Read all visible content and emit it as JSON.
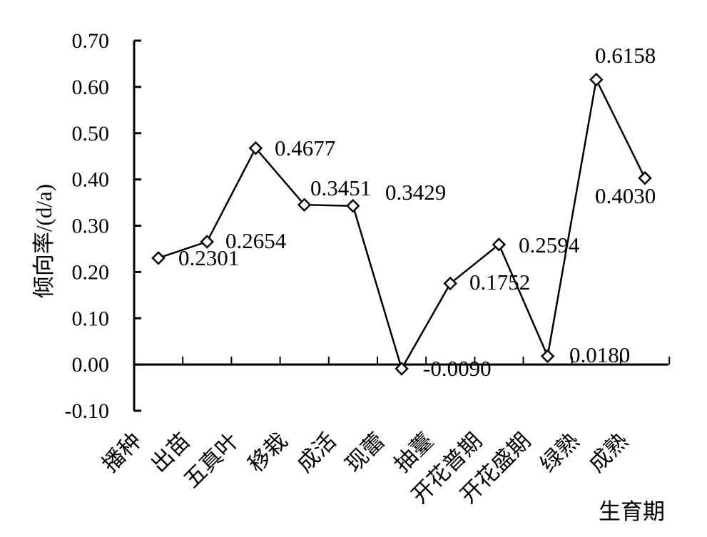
{
  "chart_data": {
    "type": "line",
    "title": "",
    "ylabel": "倾向率/(d/a)",
    "xlabel": "生育期",
    "ylim": [
      -0.1,
      0.7
    ],
    "yticks": [
      -0.1,
      0.0,
      0.1,
      0.2,
      0.3,
      0.4,
      0.5,
      0.6,
      0.7
    ],
    "ytick_labels": [
      "-0.10",
      "0.00",
      "0.10",
      "0.20",
      "0.30",
      "0.40",
      "0.50",
      "0.60",
      "0.70"
    ],
    "categories": [
      "播种",
      "出苗",
      "五真叶",
      "移栽",
      "成活",
      "现蕾",
      "抽薹",
      "开花普期",
      "开花盛期",
      "绿熟",
      "成熟"
    ],
    "series": [
      {
        "marker": "diamond",
        "color": "#000000",
        "values": [
          0.2301,
          0.2654,
          0.4677,
          0.3451,
          0.3429,
          -0.009,
          0.1752,
          0.2594,
          0.018,
          0.6158,
          0.403
        ],
        "labels": [
          "0.2301",
          "0.2654",
          "0.4677",
          "0.3451",
          "0.3429",
          "-0.0090",
          "0.1752",
          "0.2594",
          "0.0180",
          "0.6158",
          "0.4030"
        ]
      }
    ],
    "grid": false,
    "legend": "none"
  }
}
